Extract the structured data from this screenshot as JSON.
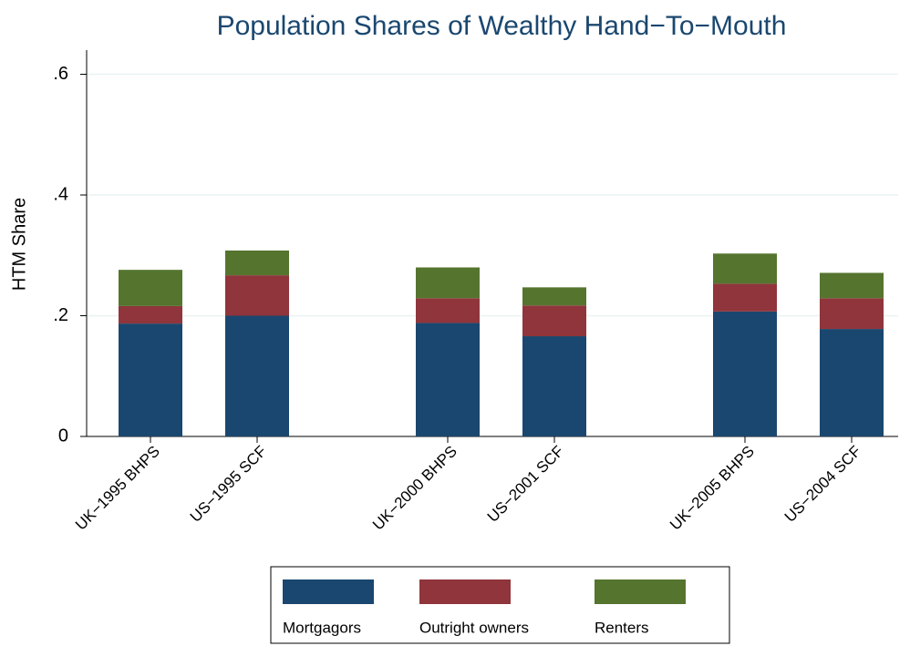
{
  "chart_data": {
    "type": "stacked-bar",
    "title": "Population Shares of Wealthy Hand−To−Mouth",
    "y_label": "HTM Share",
    "categories": [
      "UK−1995 BHPS",
      "US−1995 SCF",
      "UK−2000 BHPS",
      "US−2001 SCF",
      "UK−2005 BHPS",
      "US−2004 SCF"
    ],
    "series": [
      {
        "name": "Mortgagors",
        "color": "#1a476f",
        "values": [
          0.187,
          0.2,
          0.188,
          0.166,
          0.207,
          0.178
        ]
      },
      {
        "name": "Outright owners",
        "color": "#90353b",
        "values": [
          0.029,
          0.067,
          0.041,
          0.051,
          0.046,
          0.051
        ]
      },
      {
        "name": "Renters",
        "color": "#55752f",
        "values": [
          0.06,
          0.041,
          0.051,
          0.03,
          0.05,
          0.042
        ]
      }
    ],
    "ylim": [
      0,
      0.64
    ],
    "yticks": [
      0,
      {
        "value": 0.2,
        "label": ".2"
      },
      {
        "value": 0.4,
        "label": ".4"
      },
      {
        "value": 0.6,
        "label": ".6"
      }
    ],
    "grid": true
  }
}
